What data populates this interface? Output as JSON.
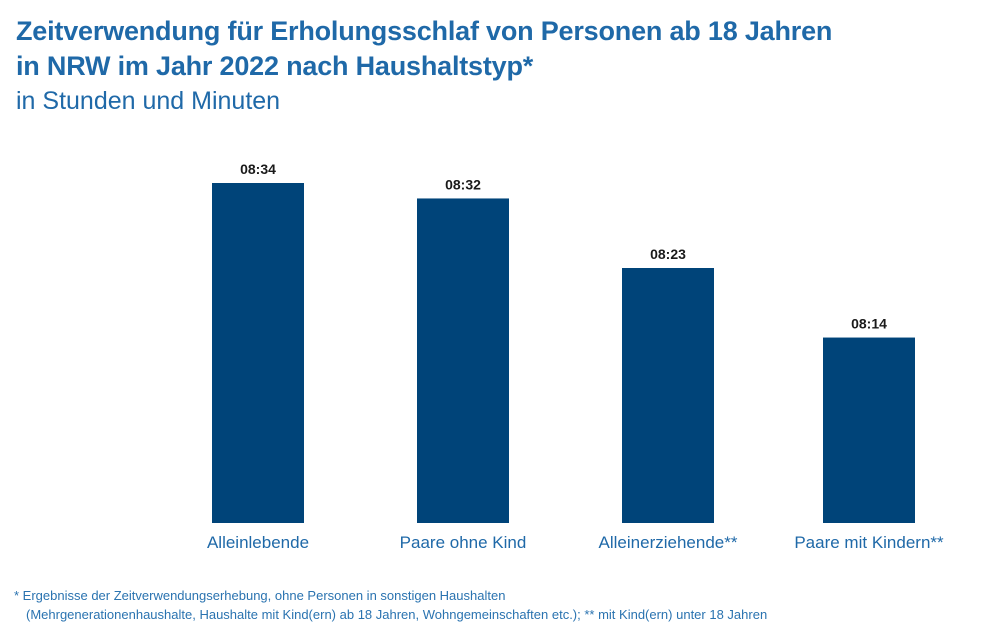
{
  "title_line1": "Zeitverwendung für Erholungsschlaf von Personen ab 18 Jahren",
  "title_line2": "in NRW im Jahr 2022 nach Haushaltstyp*",
  "subtitle": "in Stunden und Minuten",
  "footnote_line1": "*  Ergebnisse der Zeitverwendungserhebung, ohne Personen in sonstigen Haushalten",
  "footnote_line2": "(Mehrgenerationenhaushalte, Haushalte mit Kind(ern) ab 18 Jahren, Wohngemeinschaften etc.); ** mit Kind(ern) unter 18 Jahren",
  "colors": {
    "bar": "#004479",
    "text": "#1f69a8",
    "value_label": "#1a1a1a"
  },
  "chart_data": {
    "type": "bar",
    "categories": [
      "Alleinlebende",
      "Paare ohne Kind",
      "Alleinerziehende**",
      "Paare mit Kindern**"
    ],
    "values": [
      514,
      512,
      503,
      494
    ],
    "value_labels": [
      "08:34",
      "08:32",
      "08:23",
      "08:14"
    ],
    "ylim": [
      470,
      520
    ],
    "grid": false,
    "legend": "none"
  }
}
